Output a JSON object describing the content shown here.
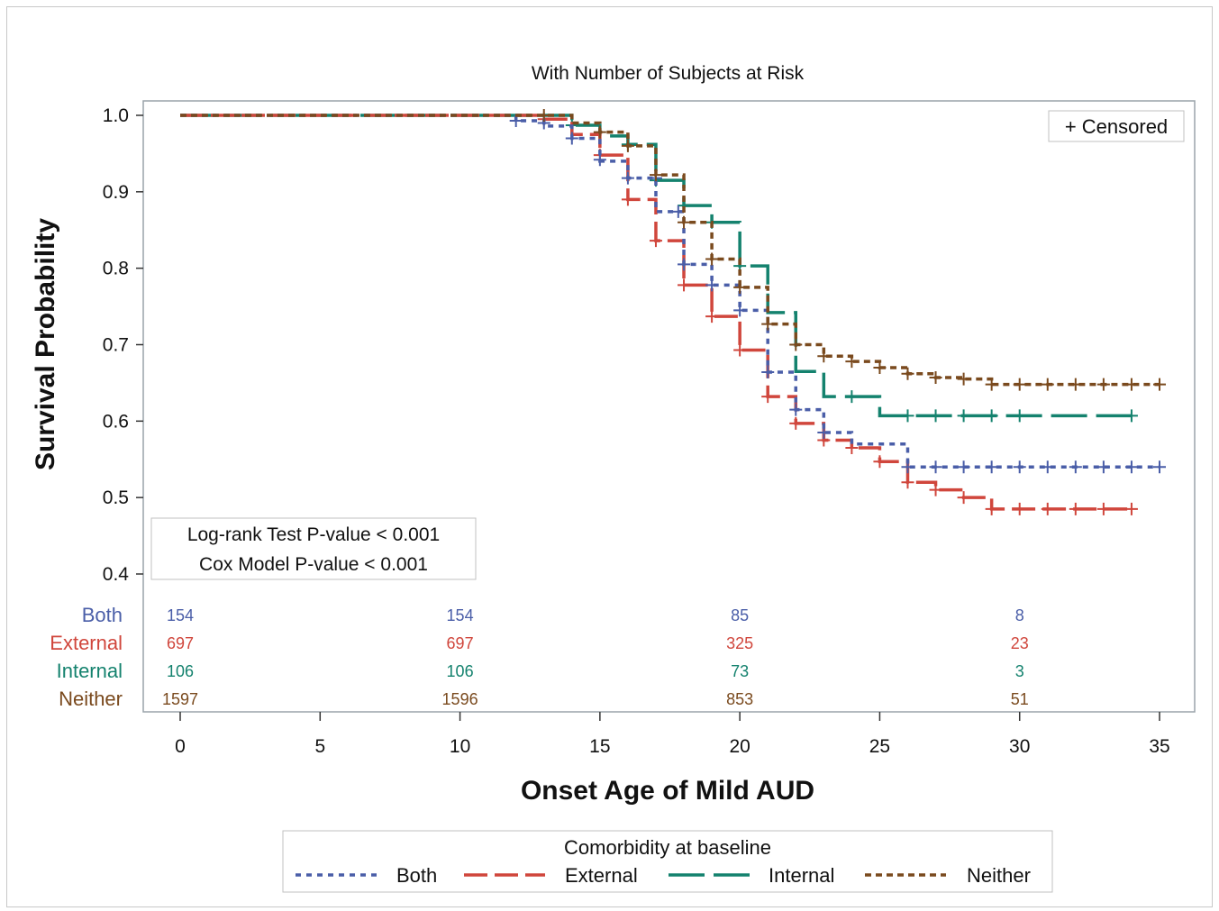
{
  "chart_data": {
    "type": "line",
    "subtitle": "With Number of Subjects at Risk",
    "xlabel": "Onset Age of Mild AUD",
    "ylabel": "Survival Probability",
    "xlim": [
      0,
      35
    ],
    "ylim": [
      0.4,
      1.0
    ],
    "xticks": [
      0,
      5,
      10,
      15,
      20,
      25,
      30,
      35
    ],
    "yticks": [
      0.4,
      0.5,
      0.6,
      0.7,
      0.8,
      0.9,
      1.0
    ],
    "ytick_labels": [
      "0.4",
      "0.5",
      "0.6",
      "0.7",
      "0.8",
      "0.9",
      "1.0"
    ],
    "censored_label": "+ Censored",
    "stats": [
      "Log-rank Test P-value < 0.001",
      "Cox Model P-value < 0.001"
    ],
    "legend": {
      "title": "Comorbidity at baseline",
      "position": "bottom"
    },
    "series": [
      {
        "name": "Both",
        "color": "#4a5ea8",
        "dash": "dotted",
        "steps": [
          [
            0,
            1.0
          ],
          [
            12,
            0.993
          ],
          [
            13,
            0.986
          ],
          [
            14,
            0.97
          ],
          [
            15,
            0.94
          ],
          [
            16,
            0.918
          ],
          [
            17,
            0.874
          ],
          [
            18,
            0.805
          ],
          [
            19,
            0.778
          ],
          [
            20,
            0.745
          ],
          [
            21,
            0.664
          ],
          [
            22,
            0.615
          ],
          [
            23,
            0.585
          ],
          [
            24,
            0.57
          ],
          [
            26,
            0.54
          ],
          [
            35,
            0.54
          ]
        ],
        "censored": [
          [
            12,
            0.993
          ],
          [
            13,
            0.99
          ],
          [
            14,
            0.97
          ],
          [
            15,
            0.942
          ],
          [
            16,
            0.918
          ],
          [
            17,
            0.918
          ],
          [
            17.8,
            0.874
          ],
          [
            18,
            0.805
          ],
          [
            19,
            0.778
          ],
          [
            20,
            0.745
          ],
          [
            21,
            0.664
          ],
          [
            22,
            0.615
          ],
          [
            23,
            0.585
          ],
          [
            26,
            0.54
          ],
          [
            27,
            0.54
          ],
          [
            28,
            0.54
          ],
          [
            29,
            0.54
          ],
          [
            30,
            0.54
          ],
          [
            31,
            0.54
          ],
          [
            32,
            0.54
          ],
          [
            33,
            0.54
          ],
          [
            34,
            0.54
          ],
          [
            35,
            0.54
          ]
        ]
      },
      {
        "name": "External",
        "color": "#d0463c",
        "dash": "long",
        "steps": [
          [
            0,
            1.0
          ],
          [
            13,
            0.995
          ],
          [
            14,
            0.975
          ],
          [
            15,
            0.948
          ],
          [
            16,
            0.89
          ],
          [
            17,
            0.836
          ],
          [
            18,
            0.778
          ],
          [
            19,
            0.737
          ],
          [
            20,
            0.693
          ],
          [
            21,
            0.632
          ],
          [
            22,
            0.597
          ],
          [
            23,
            0.575
          ],
          [
            24,
            0.565
          ],
          [
            25,
            0.547
          ],
          [
            26,
            0.52
          ],
          [
            27,
            0.51
          ],
          [
            28,
            0.5
          ],
          [
            29,
            0.485
          ],
          [
            34,
            0.485
          ]
        ],
        "censored": [
          [
            13,
            0.995
          ],
          [
            15,
            0.948
          ],
          [
            16,
            0.89
          ],
          [
            17,
            0.836
          ],
          [
            18,
            0.778
          ],
          [
            19,
            0.737
          ],
          [
            20,
            0.693
          ],
          [
            21,
            0.632
          ],
          [
            22,
            0.597
          ],
          [
            23,
            0.575
          ],
          [
            24,
            0.565
          ],
          [
            25,
            0.547
          ],
          [
            26,
            0.52
          ],
          [
            27,
            0.51
          ],
          [
            28,
            0.5
          ],
          [
            29,
            0.485
          ],
          [
            30,
            0.485
          ],
          [
            31,
            0.485
          ],
          [
            32,
            0.485
          ],
          [
            33,
            0.485
          ],
          [
            34,
            0.485
          ]
        ]
      },
      {
        "name": "Internal",
        "color": "#14826e",
        "dash": "longdash",
        "steps": [
          [
            0,
            1.0
          ],
          [
            14,
            0.987
          ],
          [
            15,
            0.973
          ],
          [
            16,
            0.962
          ],
          [
            17,
            0.915
          ],
          [
            18,
            0.882
          ],
          [
            19,
            0.86
          ],
          [
            20,
            0.803
          ],
          [
            21,
            0.742
          ],
          [
            22,
            0.665
          ],
          [
            23,
            0.632
          ],
          [
            25,
            0.607
          ],
          [
            34,
            0.607
          ]
        ],
        "censored": [
          [
            14,
            0.987
          ],
          [
            16,
            0.962
          ],
          [
            17,
            0.915
          ],
          [
            18,
            0.882
          ],
          [
            19,
            0.86
          ],
          [
            20,
            0.803
          ],
          [
            24,
            0.632
          ],
          [
            26,
            0.607
          ],
          [
            27,
            0.607
          ],
          [
            28,
            0.607
          ],
          [
            29,
            0.607
          ],
          [
            30,
            0.607
          ],
          [
            34,
            0.607
          ]
        ]
      },
      {
        "name": "Neither",
        "color": "#7a4a1e",
        "dash": "shortdash",
        "steps": [
          [
            0,
            1.0
          ],
          [
            14,
            0.99
          ],
          [
            15,
            0.978
          ],
          [
            16,
            0.96
          ],
          [
            17,
            0.922
          ],
          [
            18,
            0.86
          ],
          [
            19,
            0.812
          ],
          [
            20,
            0.775
          ],
          [
            21,
            0.727
          ],
          [
            22,
            0.7
          ],
          [
            23,
            0.685
          ],
          [
            24,
            0.678
          ],
          [
            25,
            0.67
          ],
          [
            26,
            0.662
          ],
          [
            27,
            0.657
          ],
          [
            28,
            0.655
          ],
          [
            29,
            0.648
          ],
          [
            35,
            0.648
          ]
        ],
        "censored": [
          [
            13,
            1.0
          ],
          [
            15,
            0.978
          ],
          [
            16,
            0.96
          ],
          [
            17,
            0.922
          ],
          [
            18,
            0.86
          ],
          [
            19,
            0.812
          ],
          [
            20,
            0.775
          ],
          [
            21,
            0.727
          ],
          [
            22,
            0.7
          ],
          [
            23,
            0.685
          ],
          [
            24,
            0.678
          ],
          [
            25,
            0.67
          ],
          [
            26,
            0.662
          ],
          [
            27,
            0.657
          ],
          [
            28,
            0.655
          ],
          [
            29,
            0.648
          ],
          [
            30,
            0.648
          ],
          [
            31,
            0.648
          ],
          [
            32,
            0.648
          ],
          [
            33,
            0.648
          ],
          [
            34,
            0.648
          ],
          [
            35,
            0.648
          ]
        ]
      }
    ],
    "at_risk": {
      "times": [
        0,
        10,
        20,
        30
      ],
      "rows": [
        {
          "name": "Both",
          "color": "#4a5ea8",
          "values": [
            "154",
            "154",
            "85",
            "8"
          ]
        },
        {
          "name": "External",
          "color": "#d0463c",
          "values": [
            "697",
            "697",
            "325",
            "23"
          ]
        },
        {
          "name": "Internal",
          "color": "#14826e",
          "values": [
            "106",
            "106",
            "73",
            "3"
          ]
        },
        {
          "name": "Neither",
          "color": "#7a4a1e",
          "values": [
            "1597",
            "1596",
            "853",
            "51"
          ]
        }
      ]
    }
  }
}
